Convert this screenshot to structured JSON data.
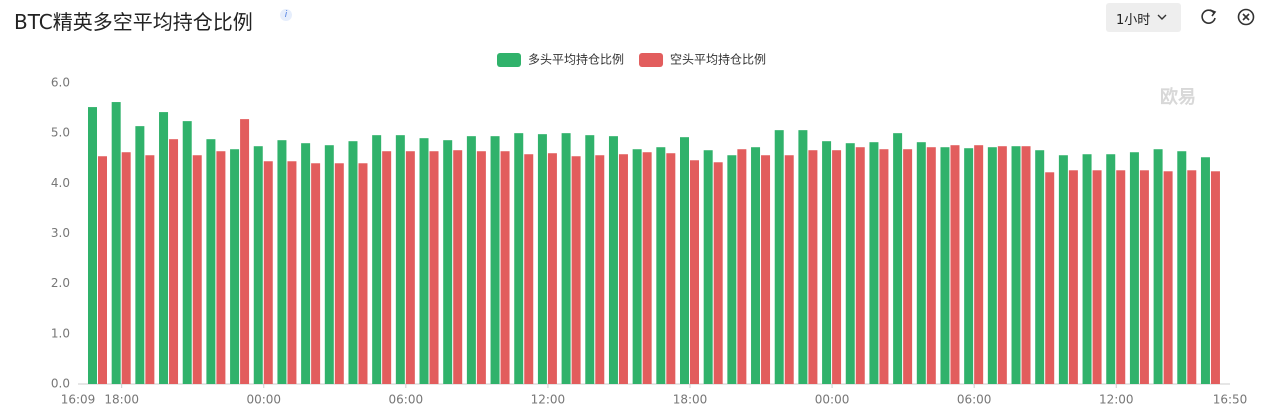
{
  "header": {
    "title": "BTC精英多空平均持仓比例",
    "info": "i",
    "interval": "1小时"
  },
  "chart_data": {
    "type": "bar",
    "watermark": "欧易",
    "categories": [
      null,
      "18:00",
      null,
      null,
      null,
      null,
      null,
      "00:00",
      null,
      null,
      null,
      null,
      null,
      "06:00",
      null,
      null,
      null,
      null,
      null,
      "12:00",
      null,
      null,
      null,
      null,
      null,
      "18:00",
      null,
      null,
      null,
      null,
      null,
      "00:00",
      null,
      null,
      null,
      null,
      null,
      "06:00",
      null,
      null,
      null,
      null,
      null,
      "12:00",
      null,
      null,
      null,
      null
    ],
    "x_range_labels": [
      "16:09",
      "16:50"
    ],
    "series": [
      {
        "name": "多头平均持仓比例",
        "color": "#30b26b",
        "values": [
          5.52,
          5.62,
          5.14,
          5.42,
          5.24,
          4.88,
          4.68,
          4.74,
          4.86,
          4.8,
          4.76,
          4.84,
          4.96,
          4.96,
          4.9,
          4.86,
          4.94,
          4.94,
          5.0,
          4.98,
          5.0,
          4.96,
          4.94,
          4.68,
          4.72,
          4.92,
          4.66,
          4.56,
          4.72,
          5.06,
          5.06,
          4.84,
          4.8,
          4.82,
          5.0,
          4.82,
          4.72,
          4.7,
          4.72,
          4.74,
          4.66,
          4.56,
          4.58,
          4.58,
          4.62,
          4.68,
          4.64,
          4.52
        ]
      },
      {
        "name": "空头平均持仓比例",
        "color": "#e25d5d",
        "values": [
          4.54,
          4.62,
          4.56,
          4.88,
          4.56,
          4.64,
          5.28,
          4.44,
          4.44,
          4.4,
          4.4,
          4.4,
          4.64,
          4.64,
          4.64,
          4.66,
          4.64,
          4.64,
          4.58,
          4.6,
          4.54,
          4.56,
          4.58,
          4.62,
          4.6,
          4.46,
          4.42,
          4.68,
          4.56,
          4.56,
          4.66,
          4.66,
          4.72,
          4.68,
          4.68,
          4.72,
          4.76,
          4.76,
          4.74,
          4.74,
          4.22,
          4.26,
          4.26,
          4.26,
          4.26,
          4.24,
          4.26,
          4.24
        ]
      }
    ],
    "ylim": [
      0,
      6
    ],
    "yticks": [
      {
        "value": 0,
        "label": "0.0"
      },
      {
        "value": 1,
        "label": "1.0"
      },
      {
        "value": 2,
        "label": "2.0"
      },
      {
        "value": 3,
        "label": "3.0"
      },
      {
        "value": 4,
        "label": "4.0"
      },
      {
        "value": 5,
        "label": "5.0"
      },
      {
        "value": 6,
        "label": "6.0"
      }
    ],
    "grid": false
  }
}
